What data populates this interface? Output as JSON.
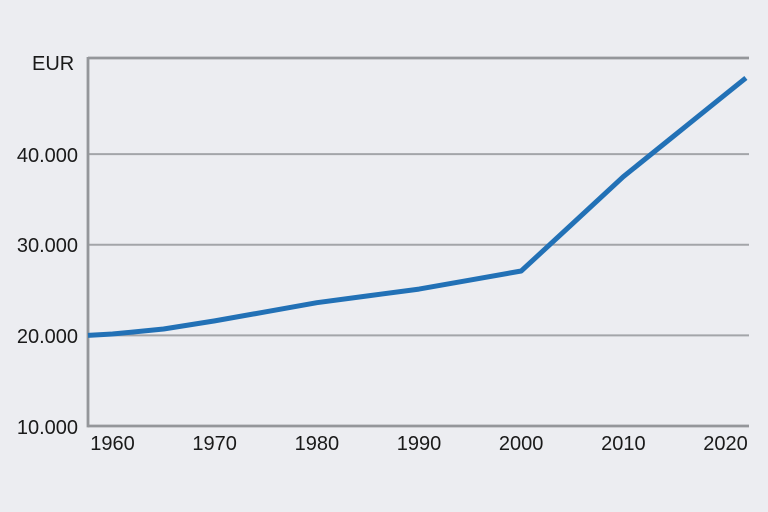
{
  "colors": {
    "background": "#ecedf1",
    "line": "#2271b6",
    "grid": "#a3a5a9",
    "frame": "#94969a",
    "text": "#1a1a1a"
  },
  "chart_data": {
    "type": "line",
    "title": "",
    "unit_label": "EUR",
    "xlabel": "",
    "ylabel": "EUR",
    "grid": true,
    "legend": "none",
    "xlim": [
      1957.6,
      2022.3
    ],
    "ylim": [
      10000,
      50600
    ],
    "x_ticks": [
      {
        "year": 1960,
        "label": "1960"
      },
      {
        "year": 1970,
        "label": "1970"
      },
      {
        "year": 1980,
        "label": "1980"
      },
      {
        "year": 1990,
        "label": "1990"
      },
      {
        "year": 2000,
        "label": "2000"
      },
      {
        "year": 2010,
        "label": "2010"
      },
      {
        "year": 2020,
        "label": "2020"
      }
    ],
    "y_ticks": [
      {
        "value": 10000,
        "label": "10.000"
      },
      {
        "value": 20000,
        "label": "20.000"
      },
      {
        "value": 30000,
        "label": "30.000"
      },
      {
        "value": 40000,
        "label": "40.000"
      }
    ],
    "series": [
      {
        "name": "EUR",
        "points": [
          [
            1957.6,
            20000
          ],
          [
            1960,
            20150
          ],
          [
            1965,
            20700
          ],
          [
            1970,
            21600
          ],
          [
            1975,
            22600
          ],
          [
            1980,
            23600
          ],
          [
            1985,
            24350
          ],
          [
            1990,
            25100
          ],
          [
            1995,
            26100
          ],
          [
            2000,
            27100
          ],
          [
            2005,
            32300
          ],
          [
            2010,
            37500
          ],
          [
            2015,
            42050
          ],
          [
            2020,
            46600
          ],
          [
            2022,
            48400
          ]
        ]
      }
    ]
  }
}
